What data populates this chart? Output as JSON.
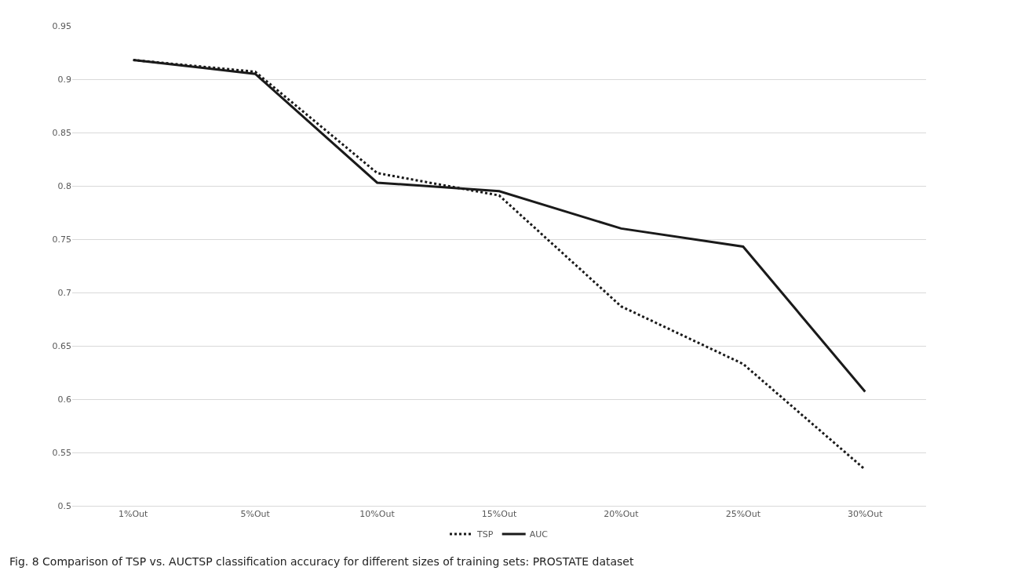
{
  "chart_data": {
    "type": "line",
    "categories": [
      "1%Out",
      "5%Out",
      "10%Out",
      "15%Out",
      "20%Out",
      "25%Out",
      "30%Out"
    ],
    "series": [
      {
        "name": "TSP",
        "color": "#1a1a1a",
        "line_style": "dotted",
        "values": [
          0.918,
          0.907,
          0.812,
          0.791,
          0.687,
          0.633,
          0.534
        ]
      },
      {
        "name": "AUC",
        "color": "#1a1a1a",
        "line_style": "solid",
        "values": [
          0.918,
          0.905,
          0.803,
          0.795,
          0.76,
          0.743,
          0.607
        ]
      }
    ],
    "ylim": [
      0.5,
      0.95
    ],
    "yticks": [
      0.5,
      0.55,
      0.6,
      0.65,
      0.7,
      0.75,
      0.8,
      0.85,
      0.9,
      0.95
    ],
    "grid": "y",
    "legend": "bottom",
    "marker": "none",
    "annotations": [
      "Fig. 8 Comparison of TSP vs. AUCTSP classification accuracy for different sizes of training sets: PROSTATE dataset"
    ]
  }
}
